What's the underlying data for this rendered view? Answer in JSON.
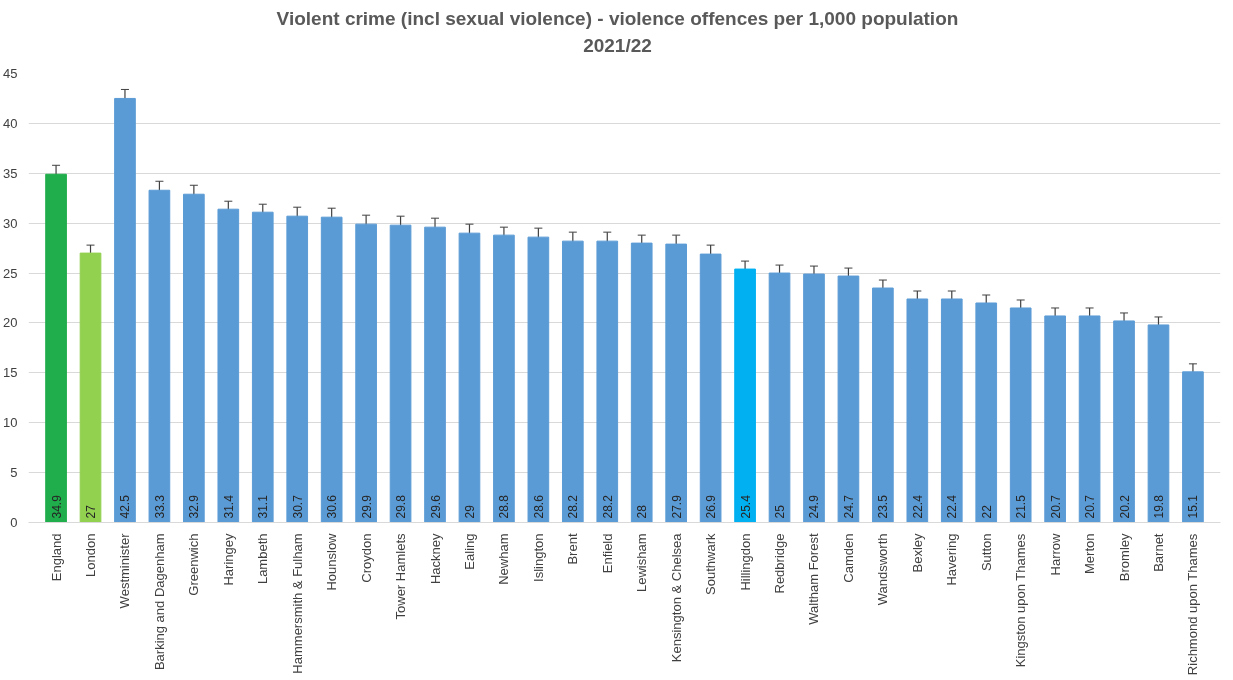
{
  "chart_data": {
    "type": "bar",
    "title": "Violent crime (incl sexual violence) - violence offences per 1,000 population\n2021/22",
    "categories": [
      "England",
      "London",
      "Westminister",
      "Barking and Dagenham",
      "Greenwich",
      "Haringey",
      "Lambeth",
      "Hammersmith & Fulham",
      "Hounslow",
      "Croydon",
      "Tower Hamlets",
      "Hackney",
      "Ealing",
      "Newham",
      "Islington",
      "Brent",
      "Enfield",
      "Lewisham",
      "Kensington & Chelsea",
      "Southwark",
      "Hillingdon",
      "Redbridge",
      "Waltham Forest",
      "Camden",
      "Wandsworth",
      "Bexley",
      "Havering",
      "Sutton",
      "Kingston upon Thames",
      "Harrow",
      "Merton",
      "Bromley",
      "Barnet",
      "Richmond upon Thames"
    ],
    "values": [
      34.9,
      27,
      42.5,
      33.3,
      32.9,
      31.4,
      31.1,
      30.7,
      30.6,
      29.9,
      29.8,
      29.6,
      29,
      28.8,
      28.6,
      28.2,
      28.2,
      28,
      27.9,
      26.9,
      25.4,
      25,
      24.9,
      24.7,
      23.5,
      22.4,
      22.4,
      22,
      21.5,
      20.7,
      20.7,
      20.2,
      19.8,
      15.1
    ],
    "colors": [
      "#1fae4b",
      "#92d050",
      "#5b9bd5",
      "#5b9bd5",
      "#5b9bd5",
      "#5b9bd5",
      "#5b9bd5",
      "#5b9bd5",
      "#5b9bd5",
      "#5b9bd5",
      "#5b9bd5",
      "#5b9bd5",
      "#5b9bd5",
      "#5b9bd5",
      "#5b9bd5",
      "#5b9bd5",
      "#5b9bd5",
      "#5b9bd5",
      "#5b9bd5",
      "#5b9bd5",
      "#00b0f0",
      "#5b9bd5",
      "#5b9bd5",
      "#5b9bd5",
      "#5b9bd5",
      "#5b9bd5",
      "#5b9bd5",
      "#5b9bd5",
      "#5b9bd5",
      "#5b9bd5",
      "#5b9bd5",
      "#5b9bd5",
      "#5b9bd5",
      "#5b9bd5"
    ],
    "errors": [
      0.9,
      0.8,
      0.9,
      0.9,
      0.9,
      0.8,
      0.8,
      0.9,
      0.9,
      0.9,
      0.9,
      0.9,
      0.9,
      0.8,
      0.9,
      0.9,
      0.9,
      0.8,
      0.9,
      0.9,
      0.8,
      0.8,
      0.8,
      0.8,
      0.8,
      0.8,
      0.8,
      0.8,
      0.8,
      0.8,
      0.8,
      0.8,
      0.8,
      0.8
    ],
    "ylim": [
      0,
      45
    ],
    "yticks": [
      0,
      5,
      10,
      15,
      20,
      25,
      30,
      35,
      40,
      45
    ],
    "grid": "y",
    "data_labels": true
  }
}
